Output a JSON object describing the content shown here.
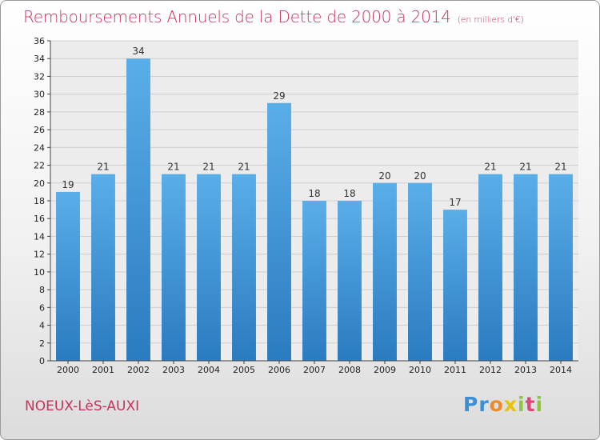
{
  "chart_data": {
    "type": "bar",
    "title": "Remboursements Annuels de la Dette de 2000 à 2014",
    "subtitle": "(en milliers d'€)",
    "categories": [
      "2000",
      "2001",
      "2002",
      "2003",
      "2004",
      "2005",
      "2006",
      "2007",
      "2008",
      "2009",
      "2010",
      "2011",
      "2012",
      "2013",
      "2014"
    ],
    "values": [
      19,
      21,
      34,
      21,
      21,
      21,
      29,
      18,
      18,
      20,
      20,
      17,
      21,
      21,
      21
    ],
    "ylim": [
      0,
      36
    ],
    "yticks": [
      0,
      2,
      4,
      6,
      8,
      10,
      12,
      14,
      16,
      18,
      20,
      22,
      24,
      26,
      28,
      30,
      32,
      34,
      36
    ],
    "grid": true,
    "bar_color_top": "#5aaee8",
    "bar_color_bottom": "#2a7bc0"
  },
  "commune": "NOEUX-LèS-AUXI",
  "logo": {
    "letters": [
      "P",
      "r",
      "o",
      "x",
      "i",
      "t",
      "i"
    ],
    "colors": [
      "#3a8fd8",
      "#3a8fd8",
      "#f08a24",
      "#e8c20a",
      "#8cc63f",
      "#e0457b",
      "#8cc63f"
    ]
  }
}
